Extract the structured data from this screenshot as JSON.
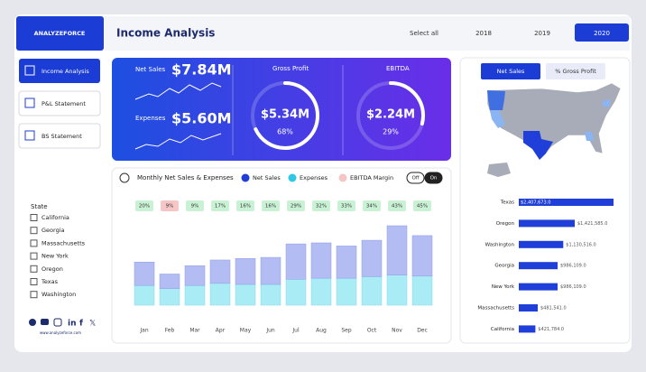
{
  "header": {
    "logo": "ANALYZEFORCE",
    "title": "Income Analysis",
    "filters": [
      "Select all",
      "2018",
      "2019",
      "2020"
    ],
    "selected_index": 3
  },
  "sidebar": {
    "nav": [
      "Income Analysis",
      "P&L Statement",
      "BS Statement"
    ],
    "selected_index": 0,
    "state_title": "State",
    "states": [
      "California",
      "Georgia",
      "Massachusetts",
      "New York",
      "Oregon",
      "Texas",
      "Washington"
    ],
    "website": "www.analyzeforce.com"
  },
  "kpis": {
    "net_sales": {
      "label": "Net Sales",
      "value": "$7.84M"
    },
    "expenses": {
      "label": "Expenses",
      "value": "$5.60M"
    },
    "gross_profit": {
      "label": "Gross Profit",
      "value": "$5.34M",
      "margin": {
        "value": 68,
        "label": "68%"
      }
    },
    "ebitda": {
      "label": "EBITDA",
      "value": "$2.24M",
      "margin": {
        "value": 29,
        "label": "29%"
      }
    }
  },
  "map_toggle": {
    "options": [
      "Net Sales",
      "% Gross Profit"
    ],
    "selected_index": 0
  },
  "chart_data": [
    {
      "type": "stacked-bar",
      "title": "Monthly Net Sales & Expenses",
      "toggle": [
        "Off",
        "On"
      ],
      "categories": [
        "Jan",
        "Feb",
        "Mar",
        "Apr",
        "May",
        "Jun",
        "Jul",
        "Aug",
        "Sep",
        "Oct",
        "Nov",
        "Dec"
      ],
      "series": [
        {
          "name": "Net Sales",
          "color": "#b3bdf3",
          "marker_color": "#1f3fd8",
          "values": [
            0.45,
            0.28,
            0.38,
            0.45,
            0.5,
            0.52,
            0.68,
            0.68,
            0.62,
            0.7,
            0.95,
            0.78
          ]
        },
        {
          "name": "Expenses",
          "color": "#a9ecf6",
          "marker_color": "#2fc8e6",
          "values": [
            0.38,
            0.32,
            0.38,
            0.42,
            0.4,
            0.4,
            0.5,
            0.52,
            0.52,
            0.55,
            0.58,
            0.56
          ]
        },
        {
          "name": "EBITDA Margin",
          "color": "#c9f1d3",
          "marker_color": "#f6c6c6",
          "highlight_color": "#f6c6c6",
          "highlight_index": 1,
          "values": [
            20,
            9,
            9,
            17,
            16,
            16,
            29,
            32,
            33,
            34,
            43,
            45
          ],
          "value_labels": [
            "20%",
            "9%",
            "9%",
            "17%",
            "16%",
            "16%",
            "29%",
            "32%",
            "33%",
            "34%",
            "43%",
            "45%"
          ]
        }
      ]
    },
    {
      "type": "hbar",
      "color": "#1f3fd8",
      "categories": [
        "Texas",
        "Oregon",
        "Washington",
        "Georgia",
        "New York",
        "Massachusetts",
        "California"
      ],
      "values": [
        2407673,
        1421585,
        1130516,
        986109,
        986109,
        481541,
        421784
      ],
      "value_labels": [
        "$2,407,673.0",
        "$1,421,585.0",
        "$1,130,516.0",
        "$986,109.0",
        "$986,109.0",
        "$481,541.0",
        "$421,784.0"
      ]
    }
  ]
}
